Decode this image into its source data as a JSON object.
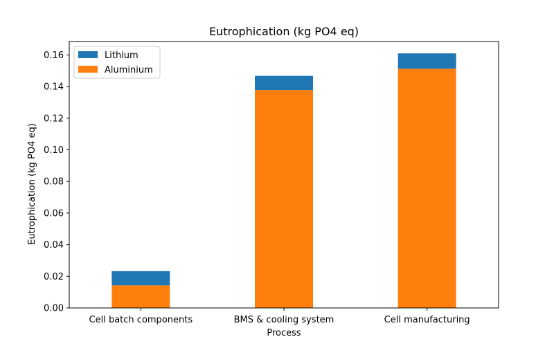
{
  "chart_data": {
    "type": "bar",
    "stacked": true,
    "title": "Eutrophication (kg PO4 eq)",
    "xlabel": "Process",
    "ylabel": "Eutrophication (kg PO4 eq)",
    "categories": [
      "Cell batch components",
      "BMS & cooling system",
      "Cell manufacturing"
    ],
    "series": [
      {
        "name": "Aluminium",
        "values": [
          0.0143,
          0.1378,
          0.1513
        ],
        "color": "#ff7f0e"
      },
      {
        "name": "Lithium",
        "values": [
          0.009,
          0.009,
          0.0097
        ],
        "color": "#1f77b4"
      }
    ],
    "ylim": [
      0,
      0.1685
    ],
    "yticks": [
      0.0,
      0.02,
      0.04,
      0.06,
      0.08,
      0.1,
      0.12,
      0.14,
      0.16
    ],
    "ytick_labels": [
      "0.00",
      "0.02",
      "0.04",
      "0.06",
      "0.08",
      "0.10",
      "0.12",
      "0.14",
      "0.16"
    ],
    "legend": {
      "position": "top-left",
      "entries": [
        {
          "label": "Lithium",
          "color": "#1f77b4"
        },
        {
          "label": "Aluminium",
          "color": "#ff7f0e"
        }
      ]
    },
    "grid": false
  }
}
